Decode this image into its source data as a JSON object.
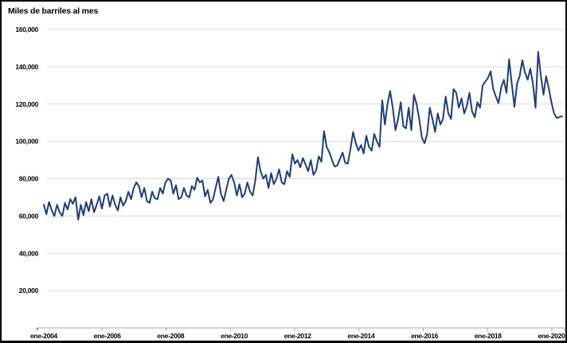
{
  "title": "Miles de barriles al mes",
  "colors": {
    "line": "#1F3D7A",
    "gridline": "#D9D9D9",
    "axis": "#A6A6A6",
    "text": "#000000",
    "background": "#FFFFFF",
    "border": "#000000"
  },
  "chart_data": {
    "type": "line",
    "title": "Miles de barriles al mes",
    "ylabel": "Miles de barriles al mes",
    "xlabel": "",
    "grid": true,
    "legend": "none",
    "ylim": [
      0,
      160000
    ],
    "y_tick_step": 20000,
    "y_tick_labels": [
      "-",
      "20,000",
      "40,000",
      "60,000",
      "80,000",
      "100,000",
      "120,000",
      "140,000",
      "160,000"
    ],
    "x_tick_labels": [
      "ene-2004",
      "ene-2006",
      "ene-2008",
      "ene-2010",
      "ene-2012",
      "ene-2014",
      "ene-2016",
      "ene-2018",
      "ene-2020"
    ],
    "x_tick_interval_months": 24,
    "series": [
      {
        "name": "Miles de barriles al mes",
        "start_month": "ene-2004",
        "end_month": "may-2020",
        "frequency": "monthly",
        "values": [
          66000,
          61000,
          67500,
          63000,
          60000,
          66000,
          62000,
          60000,
          67000,
          63500,
          69000,
          66500,
          70000,
          58000,
          66000,
          60500,
          67500,
          62500,
          69000,
          62000,
          66000,
          70500,
          64000,
          71000,
          72000,
          65000,
          71000,
          66000,
          63000,
          70000,
          65500,
          68000,
          73000,
          69000,
          75000,
          78000,
          76000,
          70000,
          75000,
          68000,
          67000,
          73000,
          69500,
          69000,
          75000,
          72000,
          78000,
          80000,
          79000,
          72000,
          76500,
          69000,
          70000,
          75000,
          71000,
          70000,
          76000,
          74000,
          80500,
          78000,
          79000,
          70500,
          74000,
          67000,
          69000,
          75000,
          81000,
          72000,
          68000,
          74000,
          80000,
          82000,
          78000,
          71000,
          77000,
          70000,
          72000,
          78000,
          73000,
          71000,
          79000,
          91500,
          84000,
          80000,
          82000,
          75000,
          83000,
          77000,
          80000,
          85000,
          78000,
          77000,
          84000,
          81000,
          93000,
          88000,
          90000,
          86000,
          91000,
          87500,
          84000,
          90000,
          82000,
          84500,
          92000,
          89000,
          105500,
          97000,
          94000,
          90000,
          86500,
          87000,
          90500,
          94000,
          88500,
          88000,
          96000,
          105000,
          99000,
          95000,
          98000,
          93500,
          103000,
          97000,
          95000,
          104000,
          100000,
          97000,
          122000,
          109000,
          120000,
          127000,
          118000,
          106000,
          112000,
          121000,
          108000,
          107000,
          118000,
          106000,
          125000,
          120000,
          112000,
          102000,
          99000,
          104000,
          118000,
          112000,
          105000,
          115000,
          109000,
          112000,
          124000,
          115000,
          112000,
          128000,
          126000,
          118000,
          123000,
          115000,
          119000,
          126000,
          116000,
          113000,
          121000,
          118000,
          130000,
          132000,
          134000,
          137500,
          128000,
          124000,
          120500,
          129000,
          133000,
          126000,
          144000,
          131000,
          118500,
          131000,
          135000,
          143500,
          137000,
          133000,
          139000,
          131000,
          118000,
          148000,
          135000,
          125000,
          135000,
          128500,
          121000,
          115000,
          112500,
          113000,
          113500
        ]
      }
    ]
  }
}
